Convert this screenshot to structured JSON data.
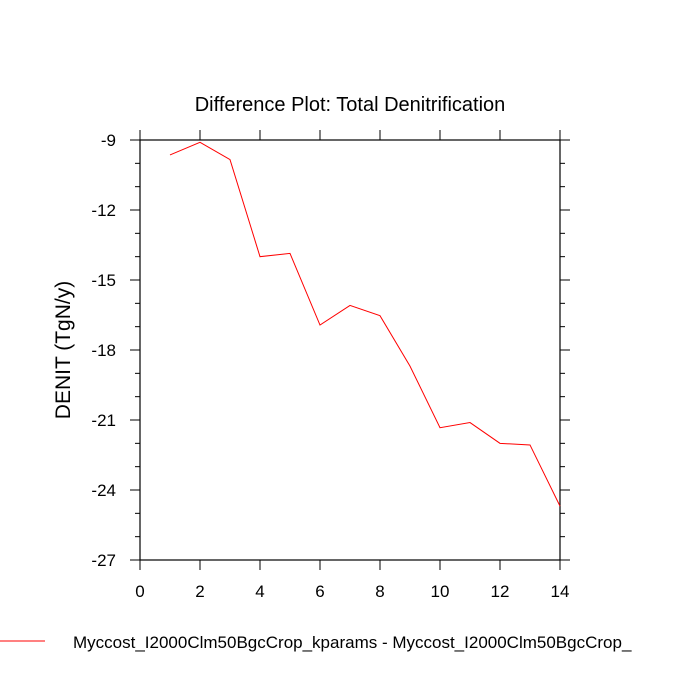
{
  "chart_data": {
    "type": "line",
    "title": "Difference Plot: Total Denitrification",
    "xlabel": "",
    "ylabel": "DENIT  (TgN/y)",
    "xlim": [
      0,
      14
    ],
    "ylim": [
      -27,
      -9
    ],
    "xticks": [
      0,
      2,
      4,
      6,
      8,
      10,
      12,
      14
    ],
    "xtick_labels": [
      "0",
      "2",
      "4",
      "6",
      "8",
      "10",
      "12",
      "14"
    ],
    "yticks": [
      -9,
      -12,
      -15,
      -18,
      -21,
      -24,
      -27
    ],
    "ytick_labels": [
      "-9",
      "-12",
      "-15",
      "-18",
      "-21",
      "-24",
      "-27"
    ],
    "grid": false,
    "legend_position": "bottom",
    "series": [
      {
        "name": "Myccost_I2000Clm50BgcCrop_kparams - Myccost_I2000Clm50BgcCrop_",
        "color": "#ff0000",
        "x": [
          1,
          2,
          3,
          4,
          5,
          6,
          7,
          8,
          9,
          10,
          11,
          12,
          13,
          14
        ],
        "values": [
          -9.64,
          -9.1,
          -9.84,
          -14.0,
          -13.86,
          -16.93,
          -16.09,
          -16.53,
          -18.69,
          -21.33,
          -21.11,
          -22.0,
          -22.07,
          -24.69
        ]
      }
    ]
  }
}
